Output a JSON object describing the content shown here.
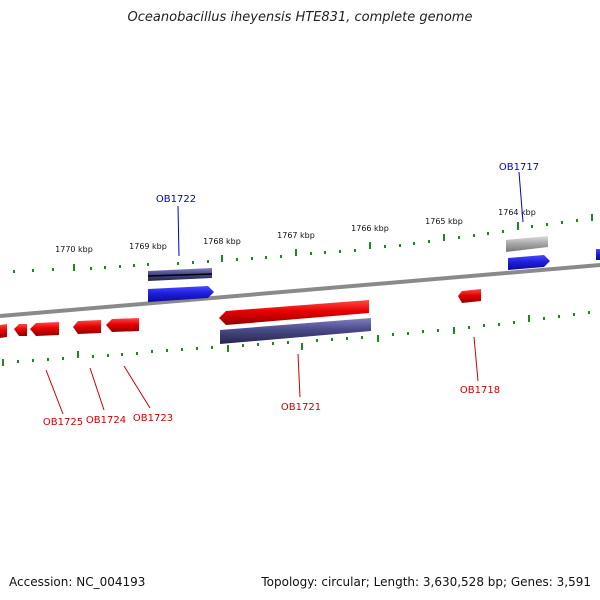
{
  "title": "Oceanobacillus iheyensis HTE831, complete genome",
  "footer": {
    "accession": "Accession: NC_004193",
    "summary": "Topology: circular; Length: 3,630,528 bp; Genes: 3,591"
  },
  "colors": {
    "forward_gene": "#1f1fe0",
    "reverse_gene": "#e80000",
    "rna_gene": "#4a4a8a",
    "pseudo_gene": "#aaaaaa",
    "tick": "#1e8a1e",
    "backbone": "#8a8a8a",
    "forward_label": "#0000cc",
    "reverse_label": "#cc0000"
  },
  "scale_labels": [
    "1770 kbp",
    "1769 kbp",
    "1768 kbp",
    "1767 kbp",
    "1766 kbp",
    "1765 kbp",
    "1764 kbp"
  ],
  "gene_labels": {
    "ob1717": "OB1717",
    "ob1718": "OB1718",
    "ob1721": "OB1721",
    "ob1722": "OB1722",
    "ob1723": "OB1723",
    "ob1724": "OB1724",
    "ob1725": "OB1725"
  }
}
